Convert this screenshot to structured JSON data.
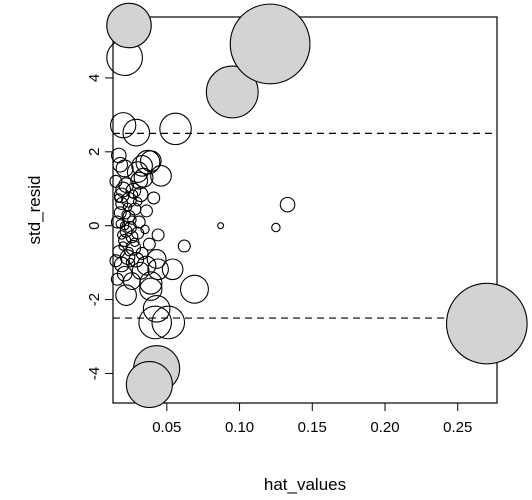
{
  "chart_data": {
    "type": "scatter",
    "title": "",
    "xlabel": "hat_values",
    "ylabel": "std_resid",
    "xlim": [
      0.013,
      0.277
    ],
    "ylim": [
      -4.8,
      5.65
    ],
    "x_ticks": [
      0.05,
      0.1,
      0.15,
      0.2,
      0.25
    ],
    "x_tick_labels": [
      "0.05",
      "0.10",
      "0.15",
      "0.20",
      "0.25"
    ],
    "y_ticks": [
      -4,
      -2,
      0,
      2,
      4
    ],
    "y_tick_labels": [
      "-4",
      "-2",
      "0",
      "2",
      "4"
    ],
    "reference_lines": [
      {
        "y": 2.5,
        "style": "dashed"
      },
      {
        "y": -2.5,
        "style": "dashed"
      }
    ],
    "grid": false,
    "legend": "none",
    "colors": {
      "highlight_fill": "#d3d3d3",
      "outline": "#000000"
    },
    "points": [
      {
        "x": 0.121,
        "y": 4.92,
        "size": 0.9,
        "filled": true
      },
      {
        "x": 0.024,
        "y": 5.42,
        "size": 0.28,
        "filled": true
      },
      {
        "x": 0.095,
        "y": 3.62,
        "size": 0.38,
        "filled": true
      },
      {
        "x": 0.27,
        "y": -2.65,
        "size": 0.92,
        "filled": true
      },
      {
        "x": 0.043,
        "y": -3.87,
        "size": 0.3,
        "filled": true
      },
      {
        "x": 0.038,
        "y": -4.3,
        "size": 0.3,
        "filled": true
      },
      {
        "x": 0.021,
        "y": 4.55,
        "size": 0.18,
        "filled": false
      },
      {
        "x": 0.056,
        "y": 2.62,
        "size": 0.14,
        "filled": false
      },
      {
        "x": 0.02,
        "y": 2.72,
        "size": 0.09,
        "filled": false
      },
      {
        "x": 0.029,
        "y": 2.52,
        "size": 0.1,
        "filled": false
      },
      {
        "x": 0.042,
        "y": -2.62,
        "size": 0.15,
        "filled": false
      },
      {
        "x": 0.051,
        "y": -2.62,
        "size": 0.15,
        "filled": false
      },
      {
        "x": 0.043,
        "y": -2.25,
        "size": 0.1,
        "filled": false
      },
      {
        "x": 0.069,
        "y": -1.72,
        "size": 0.11,
        "filled": false
      },
      {
        "x": 0.039,
        "y": -1.72,
        "size": 0.07,
        "filled": false
      },
      {
        "x": 0.039,
        "y": -1.55,
        "size": 0.07,
        "filled": false
      },
      {
        "x": 0.022,
        "y": -1.88,
        "size": 0.06,
        "filled": false
      },
      {
        "x": 0.054,
        "y": -1.18,
        "size": 0.06,
        "filled": false
      },
      {
        "x": 0.044,
        "y": -1.18,
        "size": 0.06,
        "filled": false
      },
      {
        "x": 0.036,
        "y": -1.08,
        "size": 0.05,
        "filled": false
      },
      {
        "x": 0.043,
        "y": -0.9,
        "size": 0.05,
        "filled": false
      },
      {
        "x": 0.032,
        "y": -1.22,
        "size": 0.04,
        "filled": false
      },
      {
        "x": 0.026,
        "y": -1.5,
        "size": 0.04,
        "filled": false
      },
      {
        "x": 0.037,
        "y": 1.72,
        "size": 0.08,
        "filled": false
      },
      {
        "x": 0.039,
        "y": 1.75,
        "size": 0.06,
        "filled": false
      },
      {
        "x": 0.033,
        "y": 1.62,
        "size": 0.06,
        "filled": false
      },
      {
        "x": 0.03,
        "y": 1.45,
        "size": 0.06,
        "filled": false
      },
      {
        "x": 0.034,
        "y": 1.3,
        "size": 0.05,
        "filled": false
      },
      {
        "x": 0.046,
        "y": 1.35,
        "size": 0.06,
        "filled": false
      },
      {
        "x": 0.031,
        "y": 1.22,
        "size": 0.04,
        "filled": false
      },
      {
        "x": 0.021,
        "y": 1.55,
        "size": 0.04,
        "filled": false
      },
      {
        "x": 0.017,
        "y": 1.9,
        "size": 0.03,
        "filled": false
      },
      {
        "x": 0.018,
        "y": 1.65,
        "size": 0.03,
        "filled": false
      },
      {
        "x": 0.022,
        "y": 1.1,
        "size": 0.03,
        "filled": false
      },
      {
        "x": 0.027,
        "y": 0.95,
        "size": 0.03,
        "filled": false
      },
      {
        "x": 0.024,
        "y": 0.7,
        "size": 0.03,
        "filled": false
      },
      {
        "x": 0.032,
        "y": 0.85,
        "size": 0.03,
        "filled": false
      },
      {
        "x": 0.028,
        "y": 0.45,
        "size": 0.02,
        "filled": false
      },
      {
        "x": 0.041,
        "y": 0.75,
        "size": 0.02,
        "filled": false
      },
      {
        "x": 0.036,
        "y": 0.4,
        "size": 0.02,
        "filled": false
      },
      {
        "x": 0.133,
        "y": 0.57,
        "size": 0.03,
        "filled": false
      },
      {
        "x": 0.062,
        "y": -0.55,
        "size": 0.02,
        "filled": false
      },
      {
        "x": 0.044,
        "y": -0.25,
        "size": 0.02,
        "filled": false
      },
      {
        "x": 0.02,
        "y": 0.98,
        "size": 0.03,
        "filled": false
      },
      {
        "x": 0.019,
        "y": 0.82,
        "size": 0.03,
        "filled": false
      },
      {
        "x": 0.018,
        "y": 0.35,
        "size": 0.02,
        "filled": false
      },
      {
        "x": 0.016,
        "y": 0.1,
        "size": 0.02,
        "filled": false
      },
      {
        "x": 0.025,
        "y": -0.05,
        "size": 0.02,
        "filled": false
      },
      {
        "x": 0.03,
        "y": -0.2,
        "size": 0.02,
        "filled": false
      },
      {
        "x": 0.021,
        "y": -0.4,
        "size": 0.02,
        "filled": false
      },
      {
        "x": 0.027,
        "y": -0.6,
        "size": 0.03,
        "filled": false
      },
      {
        "x": 0.023,
        "y": -0.85,
        "size": 0.03,
        "filled": false
      },
      {
        "x": 0.019,
        "y": -1.05,
        "size": 0.03,
        "filled": false
      },
      {
        "x": 0.017,
        "y": -0.7,
        "size": 0.02,
        "filled": false
      },
      {
        "x": 0.029,
        "y": -0.92,
        "size": 0.03,
        "filled": false
      },
      {
        "x": 0.033,
        "y": -0.75,
        "size": 0.02,
        "filled": false
      },
      {
        "x": 0.038,
        "y": -0.5,
        "size": 0.02,
        "filled": false
      },
      {
        "x": 0.021,
        "y": -1.3,
        "size": 0.03,
        "filled": false
      },
      {
        "x": 0.016,
        "y": -1.45,
        "size": 0.02,
        "filled": false
      },
      {
        "x": 0.024,
        "y": 0.25,
        "size": 0.02,
        "filled": false
      },
      {
        "x": 0.026,
        "y": -0.3,
        "size": 0.02,
        "filled": false
      },
      {
        "x": 0.019,
        "y": 0.6,
        "size": 0.02,
        "filled": false
      },
      {
        "x": 0.031,
        "y": 0.1,
        "size": 0.02,
        "filled": false
      },
      {
        "x": 0.022,
        "y": -0.15,
        "size": 0.02,
        "filled": false
      },
      {
        "x": 0.015,
        "y": 1.2,
        "size": 0.02,
        "filled": false
      },
      {
        "x": 0.015,
        "y": -0.95,
        "size": 0.02,
        "filled": false
      },
      {
        "x": 0.087,
        "y": 0.0,
        "size": 0.005,
        "filled": false
      },
      {
        "x": 0.125,
        "y": -0.05,
        "size": 0.01,
        "filled": false
      },
      {
        "x": 0.018,
        "y": 0.05,
        "size": 0.01,
        "filled": false
      },
      {
        "x": 0.02,
        "y": -0.55,
        "size": 0.01,
        "filled": false
      },
      {
        "x": 0.023,
        "y": 0.5,
        "size": 0.01,
        "filled": false
      },
      {
        "x": 0.026,
        "y": 0.15,
        "size": 0.01,
        "filled": false
      },
      {
        "x": 0.028,
        "y": -0.45,
        "size": 0.01,
        "filled": false
      },
      {
        "x": 0.024,
        "y": -0.7,
        "size": 0.01,
        "filled": false
      },
      {
        "x": 0.017,
        "y": 0.75,
        "size": 0.01,
        "filled": false
      },
      {
        "x": 0.03,
        "y": 0.65,
        "size": 0.01,
        "filled": false
      },
      {
        "x": 0.022,
        "y": 0.3,
        "size": 0.01,
        "filled": false
      },
      {
        "x": 0.035,
        "y": -0.1,
        "size": 0.01,
        "filled": false
      },
      {
        "x": 0.019,
        "y": -0.25,
        "size": 0.01,
        "filled": false
      },
      {
        "x": 0.027,
        "y": 0.85,
        "size": 0.01,
        "filled": false
      },
      {
        "x": 0.021,
        "y": 0.0,
        "size": 0.01,
        "filled": false
      },
      {
        "x": 0.025,
        "y": -1.0,
        "size": 0.01,
        "filled": false
      }
    ]
  }
}
